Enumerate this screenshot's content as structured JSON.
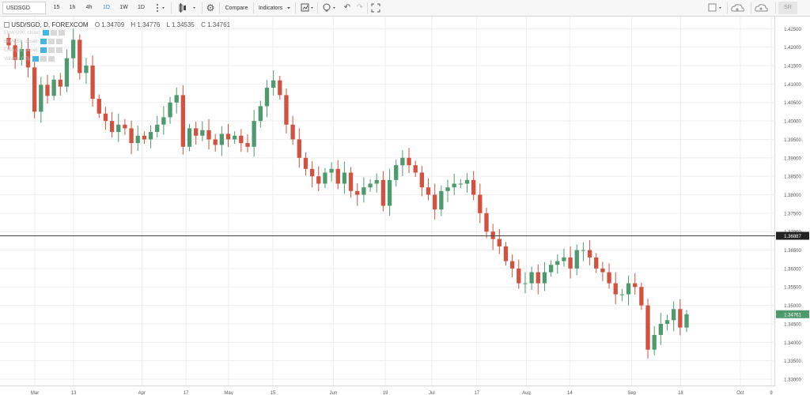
{
  "toolbar": {
    "symbol": "USDSGD",
    "intervals": [
      "15",
      "1h",
      "4h",
      "1D",
      "1W",
      "1D"
    ],
    "active_interval_index": 3,
    "compare_label": "Compare",
    "indicators_label": "Indicators",
    "right_label": "SR",
    "icons": [
      "dots-menu-icon",
      "candle-style-icon",
      "gear-icon",
      "template-icon",
      "lightbulb-icon",
      "undo-icon",
      "redo-icon",
      "fullscreen-icon",
      "layout-icon",
      "cloud-load-icon",
      "cloud-save-icon"
    ]
  },
  "legend": {
    "title": "USD/SGD, D, FOREXCOM",
    "open": "O 1.34709",
    "high": "H 1.34776",
    "low": "L 1.34535",
    "close": "C 1.34761",
    "indicator_rows": [
      "EMA (200, close)",
      "EMA (50, close)",
      "EMA (20, close)",
      "Volume (20)"
    ]
  },
  "price_axis": {
    "ticks": [
      "1.42500",
      "1.42000",
      "1.41500",
      "1.41000",
      "1.40500",
      "1.40000",
      "1.39500",
      "1.39000",
      "1.38500",
      "1.38000",
      "1.37500",
      "1.37000",
      "1.36500",
      "1.36000",
      "1.35500",
      "1.35000",
      "1.34500",
      "1.34000",
      "1.33500",
      "1.33000"
    ],
    "horizontal_line_label": "1.36887",
    "current_price_label": "1.34761"
  },
  "time_axis": {
    "labels": [
      "Mar",
      "13",
      "Apr",
      "17",
      "May",
      "15",
      "Jun",
      "19",
      "Jul",
      "17",
      "Aug",
      "14",
      "Sep",
      "18",
      "Oct",
      "9"
    ]
  },
  "colors": {
    "up": "#4e9a6f",
    "down": "#d3513f",
    "accent": "#2a8ad6",
    "grid": "#eeeeee",
    "hline": "#444444",
    "price_badge": "#4e9a6f",
    "hline_badge": "#222222"
  },
  "chart_data": {
    "type": "candlestick",
    "symbol": "USD/SGD",
    "timeframe": "D",
    "ylim": [
      1.33,
      1.427
    ],
    "horizontal_line": 1.36887,
    "last_price": 1.34761,
    "x_labels": [
      "Mar",
      "13",
      "Apr",
      "17",
      "May",
      "15",
      "Jun",
      "19",
      "Jul",
      "17",
      "Aug",
      "14",
      "Sep",
      "18",
      "Oct",
      "9"
    ],
    "waypoints": [
      1.4205,
      1.4165,
      1.4195,
      1.4145,
      1.4025,
      1.4098,
      1.4068,
      1.4112,
      1.4093,
      1.417,
      1.422,
      1.413,
      1.415,
      1.406,
      1.402,
      1.4,
      1.397,
      1.399,
      1.398,
      1.394,
      1.396,
      1.395,
      1.397,
      1.399,
      1.401,
      1.405,
      1.407,
      1.393,
      1.398,
      1.396,
      1.3975,
      1.395,
      1.3935,
      1.3965,
      1.395,
      1.396,
      1.394,
      1.393,
      1.4,
      1.404,
      1.409,
      1.411,
      1.407,
      1.399,
      1.395,
      1.39,
      1.387,
      1.385,
      1.383,
      1.386,
      1.387,
      1.383,
      1.386,
      1.381,
      1.38,
      1.382,
      1.383,
      1.384,
      1.377,
      1.384,
      1.388,
      1.39,
      1.388,
      1.386,
      1.382,
      1.38,
      1.376,
      1.381,
      1.382,
      1.383,
      1.383,
      1.384,
      1.38,
      1.375,
      1.37,
      1.368,
      1.366,
      1.362,
      1.36,
      1.356,
      1.356,
      1.359,
      1.356,
      1.359,
      1.361,
      1.362,
      1.363,
      1.36,
      1.365,
      1.365,
      1.363,
      1.36,
      1.359,
      1.356,
      1.353,
      1.353,
      1.356,
      1.355,
      1.35,
      1.338,
      1.342,
      1.345,
      1.346,
      1.349,
      1.344,
      1.3476
    ]
  }
}
